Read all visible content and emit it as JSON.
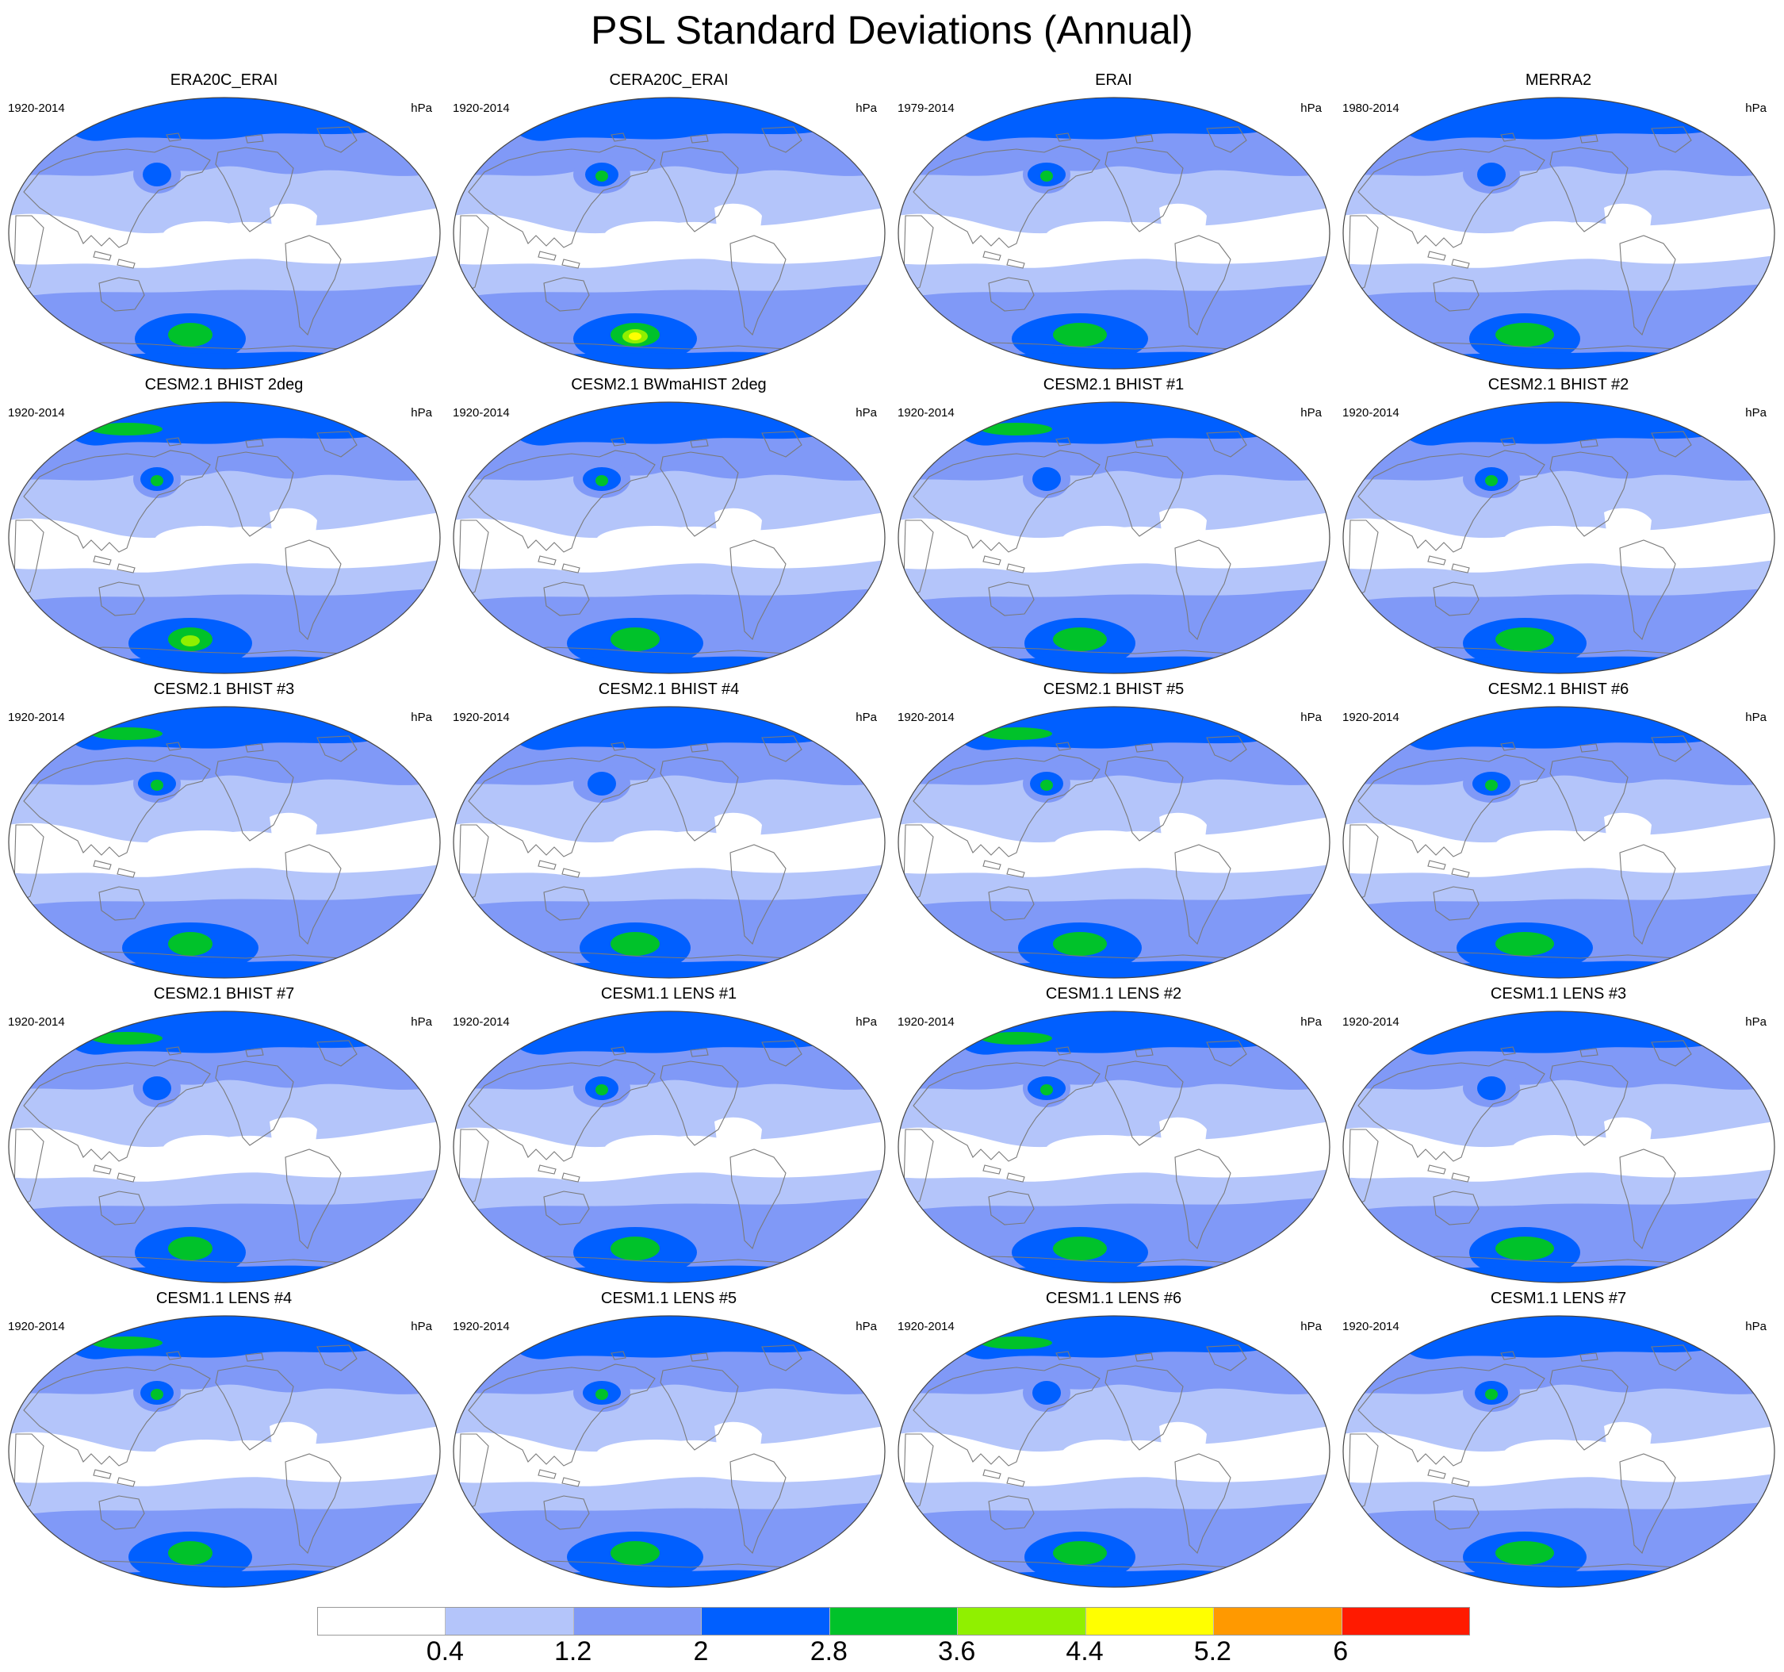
{
  "title": "PSL Standard Deviations (Annual)",
  "units": "hPa",
  "panels": [
    {
      "name": "ERA20C_ERAI",
      "years": "1920-2014"
    },
    {
      "name": "CERA20C_ERAI",
      "years": "1920-2014"
    },
    {
      "name": "ERAI",
      "years": "1979-2014"
    },
    {
      "name": "MERRA2",
      "years": "1980-2014"
    },
    {
      "name": "CESM2.1 BHIST 2deg",
      "years": "1920-2014"
    },
    {
      "name": "CESM2.1 BWmaHIST 2deg",
      "years": "1920-2014"
    },
    {
      "name": "CESM2.1 BHIST #1",
      "years": "1920-2014"
    },
    {
      "name": "CESM2.1 BHIST #2",
      "years": "1920-2014"
    },
    {
      "name": "CESM2.1 BHIST #3",
      "years": "1920-2014"
    },
    {
      "name": "CESM2.1 BHIST #4",
      "years": "1920-2014"
    },
    {
      "name": "CESM2.1 BHIST #5",
      "years": "1920-2014"
    },
    {
      "name": "CESM2.1 BHIST #6",
      "years": "1920-2014"
    },
    {
      "name": "CESM2.1 BHIST #7",
      "years": "1920-2014"
    },
    {
      "name": "CESM1.1 LENS #1",
      "years": "1920-2014"
    },
    {
      "name": "CESM1.1 LENS #2",
      "years": "1920-2014"
    },
    {
      "name": "CESM1.1 LENS #3",
      "years": "1920-2014"
    },
    {
      "name": "CESM1.1 LENS #4",
      "years": "1920-2014"
    },
    {
      "name": "CESM1.1 LENS #5",
      "years": "1920-2014"
    },
    {
      "name": "CESM1.1 LENS #6",
      "years": "1920-2014"
    },
    {
      "name": "CESM1.1 LENS #7",
      "years": "1920-2014"
    }
  ],
  "colorbar": {
    "colors": [
      "#ffffff",
      "#b4c5fa",
      "#8099f7",
      "#005fff",
      "#00c22a",
      "#90f000",
      "#ffff00",
      "#ff9900",
      "#ff1a00"
    ],
    "labels": [
      "0.4",
      "1.2",
      "2",
      "2.8",
      "3.6",
      "4.4",
      "5.2",
      "6"
    ]
  },
  "fill_colors": {
    "band_0_4": "#ffffff",
    "band_0_4_1_2": "#b4c5fa",
    "band_1_2_2": "#8099f7",
    "band_2_2_8": "#005fff",
    "band_2_8_3_6": "#00c22a",
    "band_3_6_4_4": "#90f000",
    "band_4_4_5_2": "#ffff00",
    "coastline": "#7a7a7a"
  }
}
